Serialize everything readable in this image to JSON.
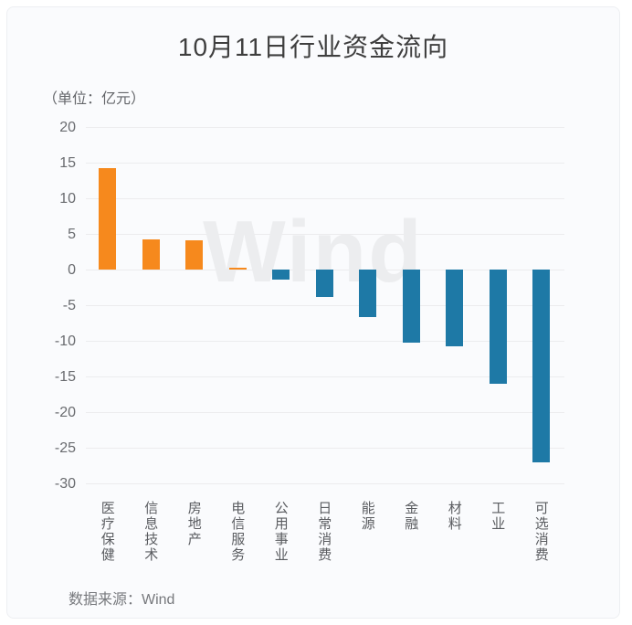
{
  "chart_data": {
    "type": "bar",
    "title": "10月11日行业资金流向",
    "unit_label": "（单位：亿元）",
    "ylabel": "亿元",
    "source_label": "数据来源：Wind",
    "watermark": "Wind",
    "categories": [
      "医疗保健",
      "信息技术",
      "房地产",
      "电信服务",
      "公用事业",
      "日常消费",
      "能源",
      "金融",
      "材料",
      "工业",
      "可选消费"
    ],
    "values": [
      14.2,
      4.2,
      4.1,
      0.3,
      -1.4,
      -3.9,
      -6.7,
      -10.2,
      -10.8,
      -16.0,
      -27.0
    ],
    "ylim": [
      -30,
      20
    ],
    "ytick_step": 5,
    "grid": true,
    "legend_position": "none",
    "positive_color": "#f6891d",
    "negative_color": "#1e79a6",
    "grid_color": "#ececee",
    "background_color": "#fafbfd"
  }
}
